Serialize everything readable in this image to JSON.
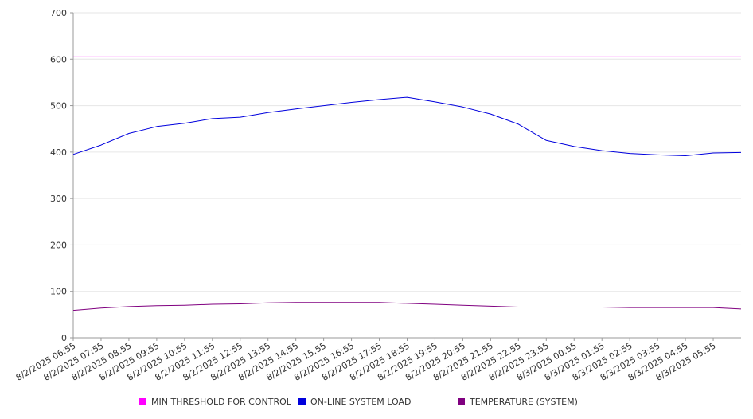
{
  "chart_data": {
    "type": "line",
    "title": "",
    "xlabel": "",
    "ylabel": "",
    "ylim": [
      0,
      700
    ],
    "yticks": [
      0,
      100,
      200,
      300,
      400,
      500,
      600,
      700
    ],
    "grid": true,
    "legend_position": "bottom",
    "x_tick_labels": [
      "8/2/2025 06:55",
      "8/2/2025 07:55",
      "8/2/2025 08:55",
      "8/2/2025 09:55",
      "8/2/2025 10:55",
      "8/2/2025 11:55",
      "8/2/2025 12:55",
      "8/2/2025 13:55",
      "8/2/2025 14:55",
      "8/2/2025 15:55",
      "8/2/2025 16:55",
      "8/2/2025 17:55",
      "8/2/2025 18:55",
      "8/2/2025 19:55",
      "8/2/2025 20:55",
      "8/2/2025 21:55",
      "8/2/2025 22:55",
      "8/2/2025 23:55",
      "8/3/2025 00:55",
      "8/3/2025 01:55",
      "8/3/2025 02:55",
      "8/3/2025 03:55",
      "8/3/2025 04:55",
      "8/3/2025 05:55"
    ],
    "series": [
      {
        "name": "MIN THRESHOLD FOR CONTROL",
        "color": "#ff00ff",
        "values": [
          605,
          605,
          605,
          605,
          605,
          605,
          605,
          605,
          605,
          605,
          605,
          605,
          605,
          605,
          605,
          605,
          605,
          605,
          605,
          605,
          605,
          605,
          605,
          605,
          605
        ]
      },
      {
        "name": "ON-LINE SYSTEM LOAD",
        "color": "#0000dd",
        "values": [
          395,
          415,
          440,
          455,
          462,
          472,
          475,
          485,
          493,
          500,
          507,
          513,
          518,
          508,
          497,
          482,
          460,
          425,
          412,
          403,
          397,
          394,
          392,
          398,
          399
        ]
      },
      {
        "name": "TEMPERATURE (SYSTEM)",
        "color": "#800080",
        "values": [
          59,
          64,
          67,
          69,
          70,
          72,
          73,
          75,
          76,
          76,
          76,
          76,
          74,
          72,
          70,
          68,
          66,
          66,
          66,
          66,
          65,
          65,
          65,
          65,
          62
        ]
      }
    ]
  }
}
